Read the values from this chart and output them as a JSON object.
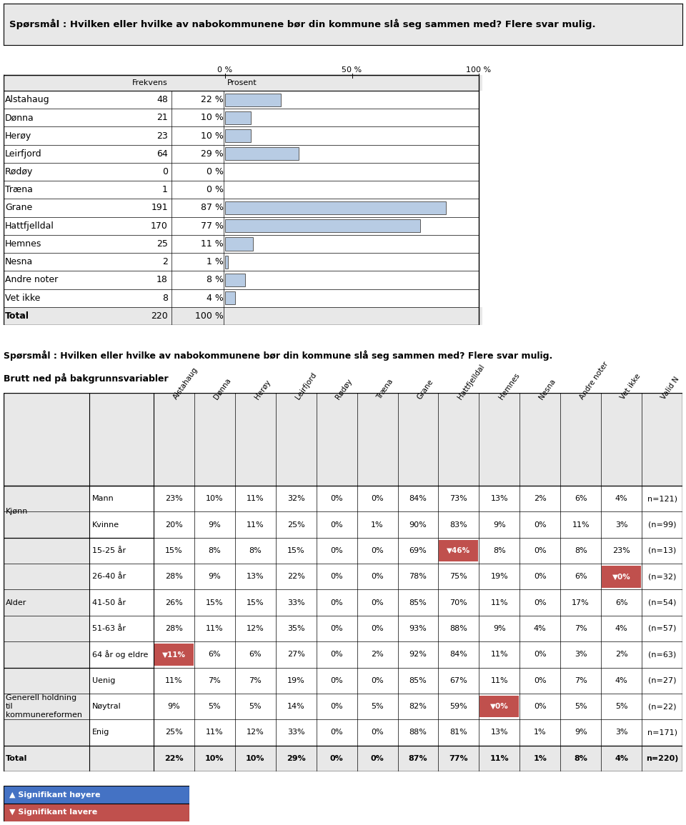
{
  "title": "Spørsmål : Hvilken eller hvilke av nabokommunene bør din kommune slå seg sammen med? Flere svar mulig.",
  "title2_line1": "Spørsmål : Hvilken eller hvilke av nabokommunene bør din kommune slå seg sammen med? Flere svar mulig.",
  "title2_line2": "Brutt ned på bakgrunnsvariabler",
  "bar_categories": [
    "Alstahaug",
    "Dønna",
    "Herøy",
    "Leirfjord",
    "Rødøy",
    "Træna",
    "Grane",
    "Hattfjelldal",
    "Hemnes",
    "Nesna",
    "Andre noter",
    "Vet ikke",
    "Total"
  ],
  "frekvens": [
    48,
    21,
    23,
    64,
    0,
    1,
    191,
    170,
    25,
    2,
    18,
    8,
    220
  ],
  "prosent": [
    22,
    10,
    10,
    29,
    0,
    0,
    87,
    77,
    11,
    1,
    8,
    4,
    100
  ],
  "prosent_labels": [
    "22 %",
    "10 %",
    "10 %",
    "29 %",
    "0 %",
    "0 %",
    "87 %",
    "77 %",
    "11 %",
    "1 %",
    "8 %",
    "4 %",
    "100 %"
  ],
  "bar_color": "#b8cce4",
  "bar_edge_color": "#595959",
  "col_headers": [
    "Alstahaug",
    "Dønna",
    "Herøy",
    "Leirfjord",
    "Rødøy",
    "Træna",
    "Grane",
    "Hattfjelldal",
    "Hemnes",
    "Nesna",
    "Andre noter",
    "Vet ikke",
    "Valid N"
  ],
  "row_groups": [
    {
      "group": "Kjønn",
      "rows": [
        {
          "label": "Mann",
          "values": [
            "23%",
            "10%",
            "11%",
            "32%",
            "0%",
            "0%",
            "84%",
            "73%",
            "13%",
            "2%",
            "6%",
            "4%",
            "n=121)"
          ],
          "highlight": []
        },
        {
          "label": "Kvinne",
          "values": [
            "20%",
            "9%",
            "11%",
            "25%",
            "0%",
            "1%",
            "90%",
            "83%",
            "9%",
            "0%",
            "11%",
            "3%",
            "(n=99)"
          ],
          "highlight": []
        }
      ]
    },
    {
      "group": "Alder",
      "rows": [
        {
          "label": "15-25 år",
          "values": [
            "15%",
            "8%",
            "8%",
            "15%",
            "0%",
            "0%",
            "69%",
            "46%",
            "8%",
            "0%",
            "8%",
            "23%",
            "(n=13)"
          ],
          "highlight": [
            {
              "col": 7,
              "type": "down",
              "text": "▼46%"
            }
          ]
        },
        {
          "label": "26-40 år",
          "values": [
            "28%",
            "9%",
            "13%",
            "22%",
            "0%",
            "0%",
            "78%",
            "75%",
            "19%",
            "0%",
            "6%",
            "0%",
            "(n=32)"
          ],
          "highlight": [
            {
              "col": 11,
              "type": "down",
              "text": "▼0%"
            }
          ]
        },
        {
          "label": "41-50 år",
          "values": [
            "26%",
            "15%",
            "15%",
            "33%",
            "0%",
            "0%",
            "85%",
            "70%",
            "11%",
            "0%",
            "17%",
            "6%",
            "(n=54)"
          ],
          "highlight": []
        },
        {
          "label": "51-63 år",
          "values": [
            "28%",
            "11%",
            "12%",
            "35%",
            "0%",
            "0%",
            "93%",
            "88%",
            "9%",
            "4%",
            "7%",
            "4%",
            "(n=57)"
          ],
          "highlight": []
        },
        {
          "label": "64 år og eldre",
          "values": [
            "11%",
            "6%",
            "6%",
            "27%",
            "0%",
            "2%",
            "92%",
            "84%",
            "11%",
            "0%",
            "3%",
            "2%",
            "(n=63)"
          ],
          "highlight": [
            {
              "col": 0,
              "type": "down",
              "text": "▼11%"
            }
          ]
        }
      ]
    },
    {
      "group": "Generell holdning\ntil\nkommunereformen",
      "rows": [
        {
          "label": "Uenig",
          "values": [
            "11%",
            "7%",
            "7%",
            "19%",
            "0%",
            "0%",
            "85%",
            "67%",
            "11%",
            "0%",
            "7%",
            "4%",
            "(n=27)"
          ],
          "highlight": []
        },
        {
          "label": "Nøytral",
          "values": [
            "9%",
            "5%",
            "5%",
            "14%",
            "0%",
            "5%",
            "82%",
            "59%",
            "0%",
            "0%",
            "5%",
            "5%",
            "(n=22)"
          ],
          "highlight": [
            {
              "col": 8,
              "type": "down",
              "text": "▼0%"
            }
          ]
        },
        {
          "label": "Enig",
          "values": [
            "25%",
            "11%",
            "12%",
            "33%",
            "0%",
            "0%",
            "88%",
            "81%",
            "13%",
            "1%",
            "9%",
            "3%",
            "n=171)"
          ],
          "highlight": []
        }
      ]
    }
  ],
  "total_row": {
    "label": "Total",
    "values": [
      "22%",
      "10%",
      "10%",
      "29%",
      "0%",
      "0%",
      "87%",
      "77%",
      "11%",
      "1%",
      "8%",
      "4%",
      "n=220)"
    ]
  },
  "legend_higher_color": "#4472c4",
  "legend_lower_color": "#c0504d",
  "bg_color": "#e8e8e8",
  "highlight_down_bg": "#c0504d",
  "highlight_down_text": "#ffffff"
}
